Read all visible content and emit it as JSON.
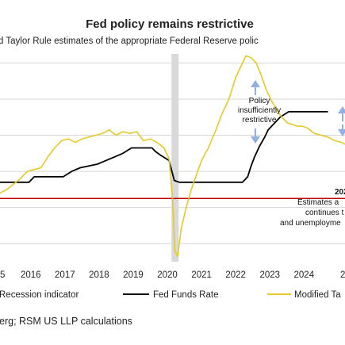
{
  "chart_data": {
    "type": "line",
    "title": "Fed policy remains restrictive",
    "subtitle": "d Taylor Rule estimates of the appropriate Federal Reserve  polic",
    "xlabel": "",
    "ylabel": "",
    "x_ticks": [
      "5",
      "2016",
      "2017",
      "2018",
      "2019",
      "2020",
      "2021",
      "2022",
      "2023",
      "2024",
      "2"
    ],
    "xlim": [
      2015.1,
      2025.2
    ],
    "ylim": [
      -3,
      8.5
    ],
    "grid": true,
    "legend_position": "bottom",
    "reference_line": {
      "value": 0.5,
      "color": "#c00000"
    },
    "recession": {
      "start": 2020.12,
      "end": 2020.33,
      "color": "#d9d9d9"
    },
    "series": [
      {
        "name": "Fed Funds Rate",
        "color": "#000000",
        "x": [
          2015.1,
          2015.95,
          2016.1,
          2016.95,
          2017.2,
          2017.45,
          2017.95,
          2018.2,
          2018.45,
          2018.7,
          2018.95,
          2019.55,
          2019.65,
          2019.8,
          2020.05,
          2020.2,
          2020.35,
          2022.2,
          2022.35,
          2022.45,
          2022.55,
          2022.7,
          2022.85,
          2022.95,
          2023.1,
          2023.3,
          2023.55,
          2024.7
        ],
        "y": [
          1.4,
          1.4,
          1.7,
          1.7,
          2.0,
          2.2,
          2.4,
          2.6,
          2.8,
          3.0,
          3.3,
          3.3,
          3.1,
          2.9,
          2.6,
          1.5,
          1.4,
          1.4,
          1.7,
          2.3,
          2.8,
          3.4,
          3.9,
          4.3,
          4.6,
          5.0,
          5.3,
          5.3
        ]
      },
      {
        "name": "Modified Taylor Rule",
        "color": "#e6c927",
        "x": [
          2015.1,
          2015.3,
          2015.5,
          2015.7,
          2015.9,
          2016.1,
          2016.3,
          2016.5,
          2016.7,
          2016.9,
          2017.1,
          2017.3,
          2017.5,
          2017.7,
          2017.9,
          2018.1,
          2018.3,
          2018.5,
          2018.7,
          2018.9,
          2019.1,
          2019.3,
          2019.5,
          2019.7,
          2019.9,
          2020.05,
          2020.15,
          2020.22,
          2020.3,
          2020.4,
          2020.55,
          2020.7,
          2020.85,
          2021.0,
          2021.2,
          2021.4,
          2021.6,
          2021.8,
          2022.0,
          2022.15,
          2022.3,
          2022.45,
          2022.6,
          2022.75,
          2022.9,
          2023.05,
          2023.2,
          2023.35,
          2023.5,
          2023.65,
          2023.8,
          2023.95,
          2024.1,
          2024.3,
          2024.5,
          2024.7,
          2024.9,
          2025.1,
          2025.2
        ],
        "y": [
          0.8,
          1.0,
          1.3,
          1.6,
          2.0,
          2.1,
          2.2,
          2.8,
          3.3,
          3.7,
          3.8,
          3.6,
          3.8,
          3.9,
          4.0,
          4.1,
          4.3,
          4.0,
          4.2,
          4.1,
          4.2,
          3.7,
          3.8,
          3.6,
          3.3,
          2.7,
          0.5,
          -2.4,
          -2.7,
          -1.2,
          0.0,
          1.0,
          1.8,
          2.6,
          3.3,
          4.2,
          5.2,
          6.0,
          7.2,
          7.8,
          8.4,
          8.3,
          8.0,
          7.3,
          6.5,
          5.9,
          5.4,
          5.0,
          4.7,
          4.6,
          4.5,
          4.5,
          4.4,
          4.1,
          4.0,
          3.9,
          3.7,
          3.6,
          3.5
        ]
      }
    ],
    "annotations": [
      {
        "lines": [
          "Policy",
          "insufficiently",
          "restrictive"
        ]
      },
      {
        "lines": [
          "202"
        ],
        "bold": true
      },
      {
        "lines": [
          "Estimates a",
          "continues t",
          "and unemployme"
        ]
      }
    ],
    "legend": [
      "Recession indicator",
      "Fed Funds Rate",
      "Modified Ta"
    ],
    "source": "erg; RSM US LLP calculations"
  }
}
